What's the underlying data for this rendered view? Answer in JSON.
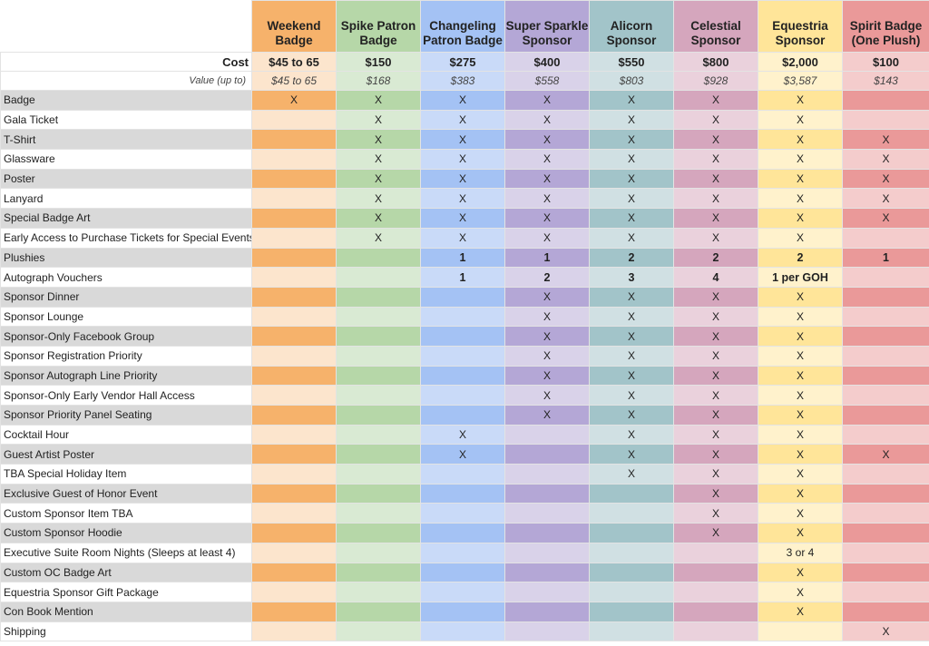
{
  "tiers": [
    {
      "name": "Weekend Badge",
      "cost": "$45 to 65",
      "value": "$45 to 65",
      "head": "#f6b26b",
      "dark": "#f6b26b",
      "light": "#fce5cd"
    },
    {
      "name": "Spike Patron Badge",
      "cost": "$150",
      "value": "$168",
      "head": "#b6d7a8",
      "dark": "#b6d7a8",
      "light": "#d9ead3"
    },
    {
      "name": "Changeling Patron Badge",
      "cost": "$275",
      "value": "$383",
      "head": "#a4c2f4",
      "dark": "#a4c2f4",
      "light": "#c9daf8"
    },
    {
      "name": "Super Sparkle Sponsor",
      "cost": "$400",
      "value": "$558",
      "head": "#b4a7d6",
      "dark": "#b4a7d6",
      "light": "#d9d2e9"
    },
    {
      "name": "Alicorn Sponsor",
      "cost": "$550",
      "value": "$803",
      "head": "#a2c4c9",
      "dark": "#a2c4c9",
      "light": "#d0e0e3"
    },
    {
      "name": "Celestial Sponsor",
      "cost": "$800",
      "value": "$928",
      "head": "#d5a6bd",
      "dark": "#d5a6bd",
      "light": "#ead1dc"
    },
    {
      "name": "Equestria Sponsor",
      "cost": "$2,000",
      "value": "$3,587",
      "head": "#ffe599",
      "dark": "#ffe599",
      "light": "#fff2cc"
    },
    {
      "name": "Spirit Badge (One Plush)",
      "cost": "$100",
      "value": "$143",
      "head": "#ea9999",
      "dark": "#ea9999",
      "light": "#f4cccc"
    }
  ],
  "cost_label": "Cost",
  "value_label": "Value (up to)",
  "features": [
    {
      "name": "Badge",
      "v": [
        "X",
        "X",
        "X",
        "X",
        "X",
        "X",
        "X",
        ""
      ]
    },
    {
      "name": "Gala Ticket",
      "v": [
        "",
        "X",
        "X",
        "X",
        "X",
        "X",
        "X",
        ""
      ]
    },
    {
      "name": "T-Shirt",
      "v": [
        "",
        "X",
        "X",
        "X",
        "X",
        "X",
        "X",
        "X"
      ]
    },
    {
      "name": "Glassware",
      "v": [
        "",
        "X",
        "X",
        "X",
        "X",
        "X",
        "X",
        "X"
      ]
    },
    {
      "name": "Poster",
      "v": [
        "",
        "X",
        "X",
        "X",
        "X",
        "X",
        "X",
        "X"
      ]
    },
    {
      "name": "Lanyard",
      "v": [
        "",
        "X",
        "X",
        "X",
        "X",
        "X",
        "X",
        "X"
      ]
    },
    {
      "name": "Special Badge Art",
      "v": [
        "",
        "X",
        "X",
        "X",
        "X",
        "X",
        "X",
        "X"
      ]
    },
    {
      "name": "Early Access to Purchase Tickets for Special Events",
      "v": [
        "",
        "X",
        "X",
        "X",
        "X",
        "X",
        "X",
        ""
      ]
    },
    {
      "name": "Plushies",
      "v": [
        "",
        "",
        "1",
        "1",
        "2",
        "2",
        "2",
        "1"
      ],
      "bold": true
    },
    {
      "name": "Autograph Vouchers",
      "v": [
        "",
        "",
        "1",
        "2",
        "3",
        "4",
        "1 per GOH",
        ""
      ],
      "bold": true
    },
    {
      "name": "Sponsor Dinner",
      "v": [
        "",
        "",
        "",
        "X",
        "X",
        "X",
        "X",
        ""
      ]
    },
    {
      "name": "Sponsor Lounge",
      "v": [
        "",
        "",
        "",
        "X",
        "X",
        "X",
        "X",
        ""
      ]
    },
    {
      "name": "Sponsor-Only Facebook Group",
      "v": [
        "",
        "",
        "",
        "X",
        "X",
        "X",
        "X",
        ""
      ]
    },
    {
      "name": "Sponsor Registration Priority",
      "v": [
        "",
        "",
        "",
        "X",
        "X",
        "X",
        "X",
        ""
      ]
    },
    {
      "name": "Sponsor Autograph Line Priority",
      "v": [
        "",
        "",
        "",
        "X",
        "X",
        "X",
        "X",
        ""
      ]
    },
    {
      "name": "Sponsor-Only Early Vendor Hall Access",
      "v": [
        "",
        "",
        "",
        "X",
        "X",
        "X",
        "X",
        ""
      ]
    },
    {
      "name": "Sponsor Priority Panel Seating",
      "v": [
        "",
        "",
        "",
        "X",
        "X",
        "X",
        "X",
        ""
      ]
    },
    {
      "name": "Cocktail Hour",
      "v": [
        "",
        "",
        "X",
        "",
        "X",
        "X",
        "X",
        ""
      ]
    },
    {
      "name": "Guest Artist Poster",
      "v": [
        "",
        "",
        "X",
        "",
        "X",
        "X",
        "X",
        "X"
      ]
    },
    {
      "name": "TBA Special Holiday Item",
      "v": [
        "",
        "",
        "",
        "",
        "X",
        "X",
        "X",
        ""
      ]
    },
    {
      "name": "Exclusive Guest of Honor Event",
      "v": [
        "",
        "",
        "",
        "",
        "",
        "X",
        "X",
        ""
      ]
    },
    {
      "name": "Custom Sponsor Item TBA",
      "v": [
        "",
        "",
        "",
        "",
        "",
        "X",
        "X",
        ""
      ]
    },
    {
      "name": "Custom Sponsor Hoodie",
      "v": [
        "",
        "",
        "",
        "",
        "",
        "X",
        "X",
        ""
      ]
    },
    {
      "name": "Executive Suite Room Nights (Sleeps at least 4)",
      "v": [
        "",
        "",
        "",
        "",
        "",
        "",
        "3 or 4",
        ""
      ]
    },
    {
      "name": "Custom OC Badge Art",
      "v": [
        "",
        "",
        "",
        "",
        "",
        "",
        "X",
        ""
      ]
    },
    {
      "name": "Equestria Sponsor Gift Package",
      "v": [
        "",
        "",
        "",
        "",
        "",
        "",
        "X",
        ""
      ]
    },
    {
      "name": "Con Book Mention",
      "v": [
        "",
        "",
        "",
        "",
        "",
        "",
        "X",
        ""
      ]
    },
    {
      "name": "Shipping",
      "v": [
        "",
        "",
        "",
        "",
        "",
        "",
        "",
        "X"
      ]
    }
  ]
}
